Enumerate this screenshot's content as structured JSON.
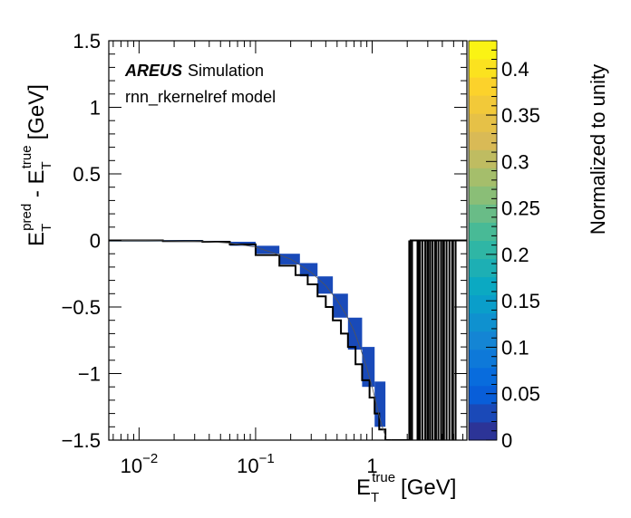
{
  "chart_data": {
    "type": "heatmap",
    "title": "",
    "annotation": {
      "brand": "AREUS",
      "brand_suffix": "Simulation",
      "model": "rnn_rkernelref model"
    },
    "xlabel": {
      "main": "E",
      "sub": "T",
      "sup": "true",
      "unit": "[GeV]"
    },
    "ylabel": {
      "a": "E",
      "a_sub": "T",
      "a_sup": "pred",
      "minus": " - ",
      "b": "E",
      "b_sub": "T",
      "b_sup": "true",
      "unit": "[GeV]"
    },
    "x_scale": "log",
    "xlim": [
      0.0055,
      6.5
    ],
    "ylim": [
      -1.5,
      1.5
    ],
    "x_ticks": [
      {
        "value": 0.01,
        "base": "10",
        "exp": "−2"
      },
      {
        "value": 0.1,
        "base": "10",
        "exp": "−1"
      },
      {
        "value": 1,
        "base": "1",
        "exp": ""
      }
    ],
    "y_ticks": [
      {
        "value": 1.5,
        "label": "1.5"
      },
      {
        "value": 1,
        "label": "1"
      },
      {
        "value": 0.5,
        "label": "0.5"
      },
      {
        "value": 0,
        "label": "0"
      },
      {
        "value": -0.5,
        "label": "−0.5"
      },
      {
        "value": -1,
        "label": "−1"
      },
      {
        "value": -1.5,
        "label": "−1.5"
      }
    ],
    "colorbar": {
      "label": "Normalized to unity",
      "range": [
        0,
        0.43
      ],
      "ticks": [
        {
          "value": 0,
          "label": "0"
        },
        {
          "value": 0.05,
          "label": "0.05"
        },
        {
          "value": 0.1,
          "label": "0.1"
        },
        {
          "value": 0.15,
          "label": "0.15"
        },
        {
          "value": 0.2,
          "label": "0.2"
        },
        {
          "value": 0.25,
          "label": "0.25"
        },
        {
          "value": 0.3,
          "label": "0.3"
        },
        {
          "value": 0.35,
          "label": "0.35"
        },
        {
          "value": 0.4,
          "label": "0.4"
        }
      ],
      "colors": [
        "#352a87",
        "#0363e1",
        "#1485d4",
        "#06a7c6",
        "#38b99e",
        "#92bf73",
        "#d9ba56",
        "#fcce2e",
        "#f9fb0e"
      ]
    },
    "heatmap_cells": [
      {
        "x0": 0.0055,
        "x1": 0.016,
        "y0": -0.003,
        "y1": 0.006,
        "value": 0.1
      },
      {
        "x0": 0.016,
        "x1": 0.035,
        "y0": -0.006,
        "y1": 0.003,
        "value": 0.04
      },
      {
        "x0": 0.035,
        "x1": 0.06,
        "y0": -0.015,
        "y1": -0.003,
        "value": 0.03
      },
      {
        "x0": 0.06,
        "x1": 0.1,
        "y0": -0.04,
        "y1": -0.01,
        "value": 0.03
      },
      {
        "x0": 0.1,
        "x1": 0.16,
        "y0": -0.1,
        "y1": -0.04,
        "value": 0.03
      },
      {
        "x0": 0.16,
        "x1": 0.24,
        "y0": -0.18,
        "y1": -0.1,
        "value": 0.03
      },
      {
        "x0": 0.24,
        "x1": 0.34,
        "y0": -0.27,
        "y1": -0.17,
        "value": 0.03
      },
      {
        "x0": 0.34,
        "x1": 0.46,
        "y0": -0.4,
        "y1": -0.27,
        "value": 0.03
      },
      {
        "x0": 0.46,
        "x1": 0.62,
        "y0": -0.58,
        "y1": -0.4,
        "value": 0.03
      },
      {
        "x0": 0.62,
        "x1": 0.82,
        "y0": -0.82,
        "y1": -0.58,
        "value": 0.03
      },
      {
        "x0": 0.82,
        "x1": 1.05,
        "y0": -1.1,
        "y1": -0.8,
        "value": 0.03
      },
      {
        "x0": 1.05,
        "x1": 1.3,
        "y0": -1.4,
        "y1": -1.06,
        "value": 0.03
      }
    ],
    "step_outline": {
      "x": [
        0.0055,
        0.016,
        0.016,
        0.035,
        0.035,
        0.06,
        0.06,
        0.1,
        0.1,
        0.16,
        0.16,
        0.22,
        0.22,
        0.28,
        0.28,
        0.34,
        0.34,
        0.4,
        0.4,
        0.46,
        0.46,
        0.54,
        0.54,
        0.62,
        0.62,
        0.72,
        0.72,
        0.82,
        0.82,
        0.95,
        0.95,
        1.05,
        1.05,
        1.15,
        1.15,
        1.3,
        1.3,
        1.45
      ],
      "y": [
        0.0,
        0.0,
        -0.005,
        -0.005,
        -0.01,
        -0.01,
        -0.03,
        -0.03,
        -0.11,
        -0.11,
        -0.19,
        -0.19,
        -0.26,
        -0.26,
        -0.33,
        -0.33,
        -0.42,
        -0.42,
        -0.5,
        -0.5,
        -0.6,
        -0.6,
        -0.7,
        -0.7,
        -0.8,
        -0.8,
        -0.93,
        -0.93,
        -1.05,
        -1.05,
        -1.18,
        -1.18,
        -1.3,
        -1.3,
        -1.42,
        -1.42,
        -1.5,
        -1.5
      ]
    },
    "profile_curve": {
      "x": [
        0.0055,
        0.01,
        0.02,
        0.04,
        0.06,
        0.1,
        0.15,
        0.2,
        0.3,
        0.4,
        0.5,
        0.6,
        0.7,
        0.8,
        0.9,
        1.0,
        1.1,
        1.2,
        1.3
      ],
      "y": [
        0.0,
        0.0,
        -0.004,
        -0.01,
        -0.02,
        -0.05,
        -0.1,
        -0.14,
        -0.24,
        -0.34,
        -0.45,
        -0.56,
        -0.68,
        -0.82,
        -0.96,
        -1.1,
        -1.25,
        -1.38,
        -1.47
      ]
    },
    "saturated_spikes": [
      2.1,
      2.2,
      2.45,
      2.55,
      2.7,
      2.85,
      3.0,
      3.15,
      3.3,
      3.5,
      3.7,
      3.9,
      4.1,
      4.35,
      4.6,
      4.9,
      5.2
    ]
  }
}
